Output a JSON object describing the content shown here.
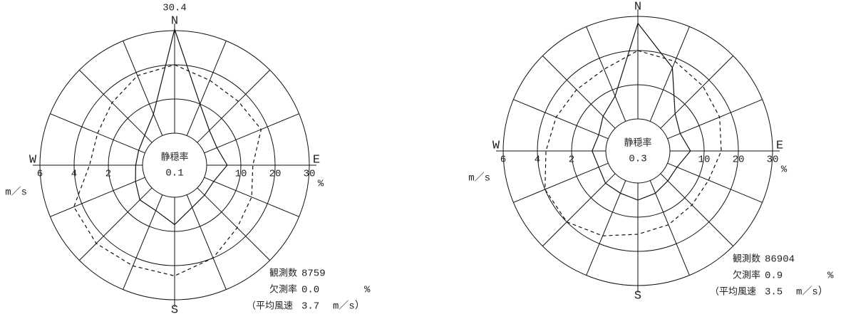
{
  "chart_data": [
    {
      "type": "wind_rose",
      "categories": [
        "N",
        null,
        null,
        null,
        "E",
        null,
        null,
        null,
        "S",
        null,
        null,
        null,
        "W",
        null,
        null,
        null
      ],
      "series": [
        {
          "color": "#111111",
          "line_style": "solid",
          "axis": "y",
          "show_peak_label": true,
          "values": [
            30.4,
            10,
            5,
            4,
            6,
            3,
            3,
            4,
            8,
            5,
            5,
            3,
            2,
            2,
            3,
            6.8
          ]
        },
        {
          "color": "#111111",
          "line_style": "dashed",
          "axis": "y2",
          "show_peak_label": false,
          "values": [
            4,
            3.5,
            3.4,
            3.6,
            2.7,
            3,
            3.3,
            4,
            4.6,
            4.5,
            4.6,
            4.5,
            3.1,
            3,
            3.3,
            3.8
          ]
        }
      ],
      "ylim": [
        0,
        30
      ],
      "yticks": [
        10,
        20,
        30
      ],
      "y_unit": "%",
      "y2lim": [
        0,
        6
      ],
      "y2ticks": [
        2,
        4,
        6
      ],
      "y2_unit": "m／s",
      "calm_label": "静穏率",
      "calm": 0.1,
      "count_label": "観測数",
      "count": 8759,
      "missing_label": "欠測率",
      "missing": {
        "value": 0,
        "label": "0.0"
      },
      "missing_unit": "%",
      "mean_speed_label": "（平均風速",
      "mean_speed": 3.7,
      "mean_speed_unit": "m／s）"
    },
    {
      "type": "wind_rose",
      "categories": [
        "N",
        null,
        null,
        null,
        "E",
        null,
        null,
        null,
        "S",
        null,
        null,
        null,
        "W",
        null,
        null,
        null
      ],
      "series": [
        {
          "color": "#111111",
          "line_style": "solid",
          "axis": "y",
          "show_peak_label": false,
          "values": [
            28,
            17,
            6,
            4,
            6,
            3,
            3,
            4,
            5,
            4,
            4,
            3,
            4,
            3,
            5,
            8
          ]
        },
        {
          "color": "#111111",
          "line_style": "dashed",
          "axis": "y2",
          "show_peak_label": false,
          "values": [
            4,
            3.8,
            3.5,
            3.3,
            3,
            2.6,
            2.6,
            2.8,
            3,
            3.5,
            4,
            4,
            3.5,
            3.3,
            3.2,
            3.3
          ]
        }
      ],
      "ylim": [
        0,
        30
      ],
      "yticks": [
        10,
        20,
        30
      ],
      "y_unit": "%",
      "y2lim": [
        0,
        6
      ],
      "y2ticks": [
        2,
        4,
        6
      ],
      "y2_unit": "m／s",
      "calm_label": "静穏率",
      "calm": 0.3,
      "count_label": "観測数",
      "count": 86904,
      "missing_label": "欠測率",
      "missing": 0.9,
      "missing_unit": "%",
      "mean_speed_label": "（平均風速",
      "mean_speed": 3.5,
      "mean_speed_unit": "m／s）"
    }
  ]
}
